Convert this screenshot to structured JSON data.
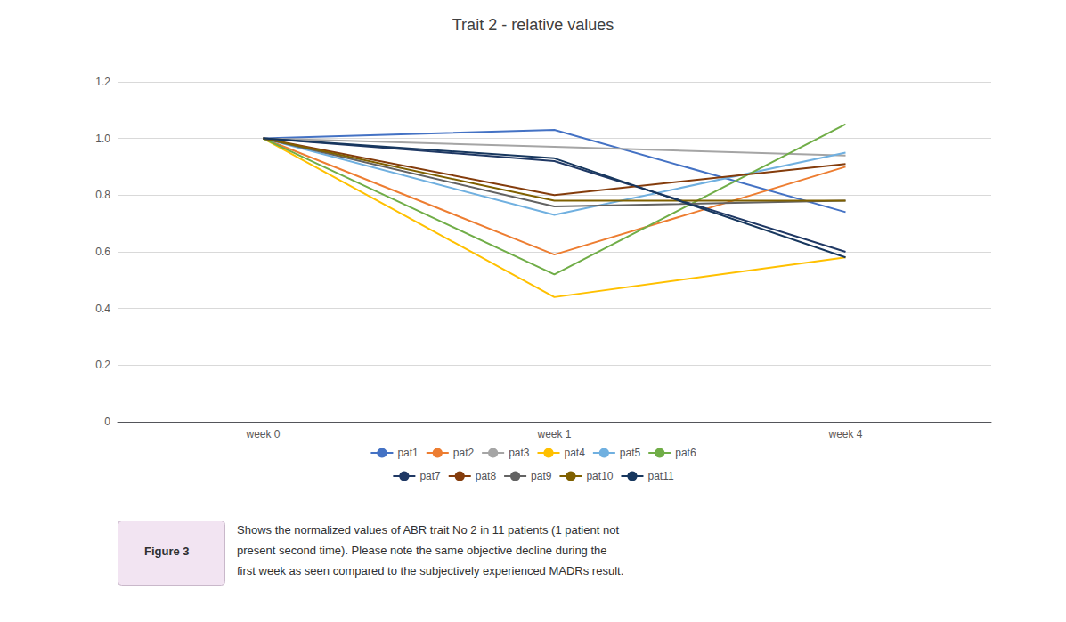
{
  "chart_data": {
    "type": "line",
    "title": "Trait 2 - relative values",
    "categories": [
      "week 0",
      "week 1",
      "week 4"
    ],
    "series": [
      {
        "name": "pat1",
        "color": "#4472C4",
        "values": [
          1.0,
          1.03,
          0.74
        ]
      },
      {
        "name": "pat2",
        "color": "#ED7D31",
        "values": [
          1.0,
          0.59,
          0.9
        ]
      },
      {
        "name": "pat3",
        "color": "#A5A5A5",
        "values": [
          1.0,
          0.97,
          0.94
        ]
      },
      {
        "name": "pat4",
        "color": "#FFC000",
        "values": [
          1.0,
          0.44,
          0.58
        ]
      },
      {
        "name": "pat5",
        "color": "#70B0E0",
        "values": [
          1.0,
          0.73,
          0.95
        ]
      },
      {
        "name": "pat6",
        "color": "#70AD47",
        "values": [
          1.0,
          0.52,
          1.05
        ]
      },
      {
        "name": "pat7",
        "color": "#1F3864",
        "values": [
          1.0,
          0.92,
          0.6
        ]
      },
      {
        "name": "pat8",
        "color": "#843C0C",
        "values": [
          1.0,
          0.8,
          0.91
        ]
      },
      {
        "name": "pat9",
        "color": "#636363",
        "values": [
          1.0,
          0.76,
          0.78
        ]
      },
      {
        "name": "pat10",
        "color": "#7F6000",
        "values": [
          1.0,
          0.78,
          0.78
        ]
      },
      {
        "name": "pat11",
        "color": "#17375E",
        "values": [
          1.0,
          0.93,
          0.58
        ]
      }
    ],
    "ylim": [
      0,
      1.3
    ],
    "yticks": [
      0,
      0.2,
      0.4,
      0.6,
      0.8,
      {
        "value": 1.0,
        "label": "1.0"
      },
      1.2
    ],
    "grid": true,
    "legend": "bottom",
    "figure_label": "Figure 3",
    "caption": [
      "Shows the normalized values of ABR trait No 2 in 11 patients (1 patient not",
      "present second time). Please note the same objective decline during the",
      "first week as seen compared to the subjectively experienced MADRs result."
    ]
  }
}
